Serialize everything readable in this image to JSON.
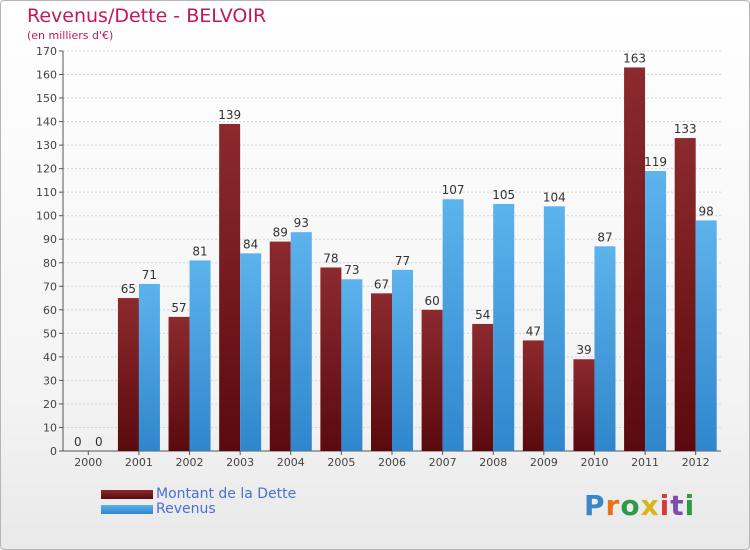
{
  "title": "Revenus/Dette - BELVOIR",
  "subtitle": "(en milliers d'€)",
  "logo_text": "Proxiti",
  "colors": {
    "dette": "#7a1e22",
    "revenus": "#4aa3e0",
    "title": "#c2185b",
    "legend_text": "#4a6fd6"
  },
  "legend": [
    {
      "label": "Montant de la Dette",
      "color": "#6e0f14"
    },
    {
      "label": "Revenus",
      "color": "#3a98dd"
    }
  ],
  "chart_data": {
    "type": "bar",
    "title": "Revenus/Dette - BELVOIR",
    "subtitle": "(en milliers d'€)",
    "categories": [
      "2000",
      "2001",
      "2002",
      "2003",
      "2004",
      "2005",
      "2006",
      "2007",
      "2008",
      "2009",
      "2010",
      "2011",
      "2012"
    ],
    "series": [
      {
        "name": "Montant de la Dette",
        "values": [
          0,
          65,
          57,
          139,
          89,
          78,
          67,
          60,
          54,
          47,
          39,
          163,
          133
        ]
      },
      {
        "name": "Revenus",
        "values": [
          0,
          71,
          81,
          84,
          93,
          73,
          77,
          107,
          105,
          104,
          87,
          119,
          98
        ]
      }
    ],
    "ylim": [
      0,
      170
    ],
    "yticks": [
      0,
      10,
      20,
      30,
      40,
      50,
      60,
      70,
      80,
      90,
      100,
      110,
      120,
      130,
      140,
      150,
      160,
      170
    ],
    "grid": true,
    "legend_position": "bottom-left"
  }
}
